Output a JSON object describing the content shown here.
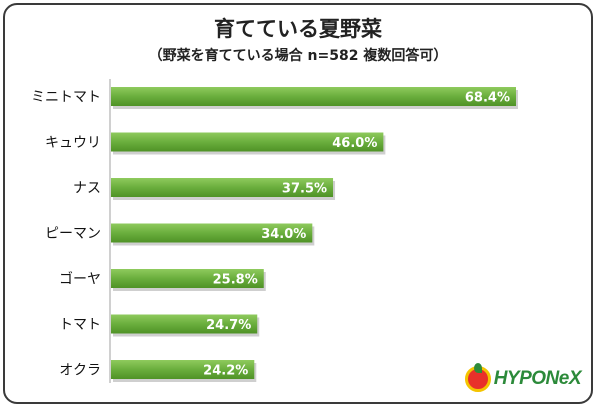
{
  "header": {
    "title": "育てている夏野菜",
    "subtitle": "（野菜を育てている場合 n=582 複数回答可）"
  },
  "brand": {
    "name": "HYPONeX",
    "color": "#2c8a3a"
  },
  "chart_data": {
    "type": "bar",
    "orientation": "horizontal",
    "categories": [
      "ミニトマト",
      "キュウリ",
      "ナス",
      "ピーマン",
      "ゴーヤ",
      "トマト",
      "オクラ"
    ],
    "values": [
      68.4,
      46.0,
      37.5,
      34.0,
      25.8,
      24.7,
      24.2
    ],
    "value_labels": [
      "68.4%",
      "46.0%",
      "37.5%",
      "34.0%",
      "25.8%",
      "24.7%",
      "24.2%"
    ],
    "unit": "%",
    "xlim": [
      0,
      70
    ],
    "grid": false,
    "bar_color": "#69ad3c"
  }
}
